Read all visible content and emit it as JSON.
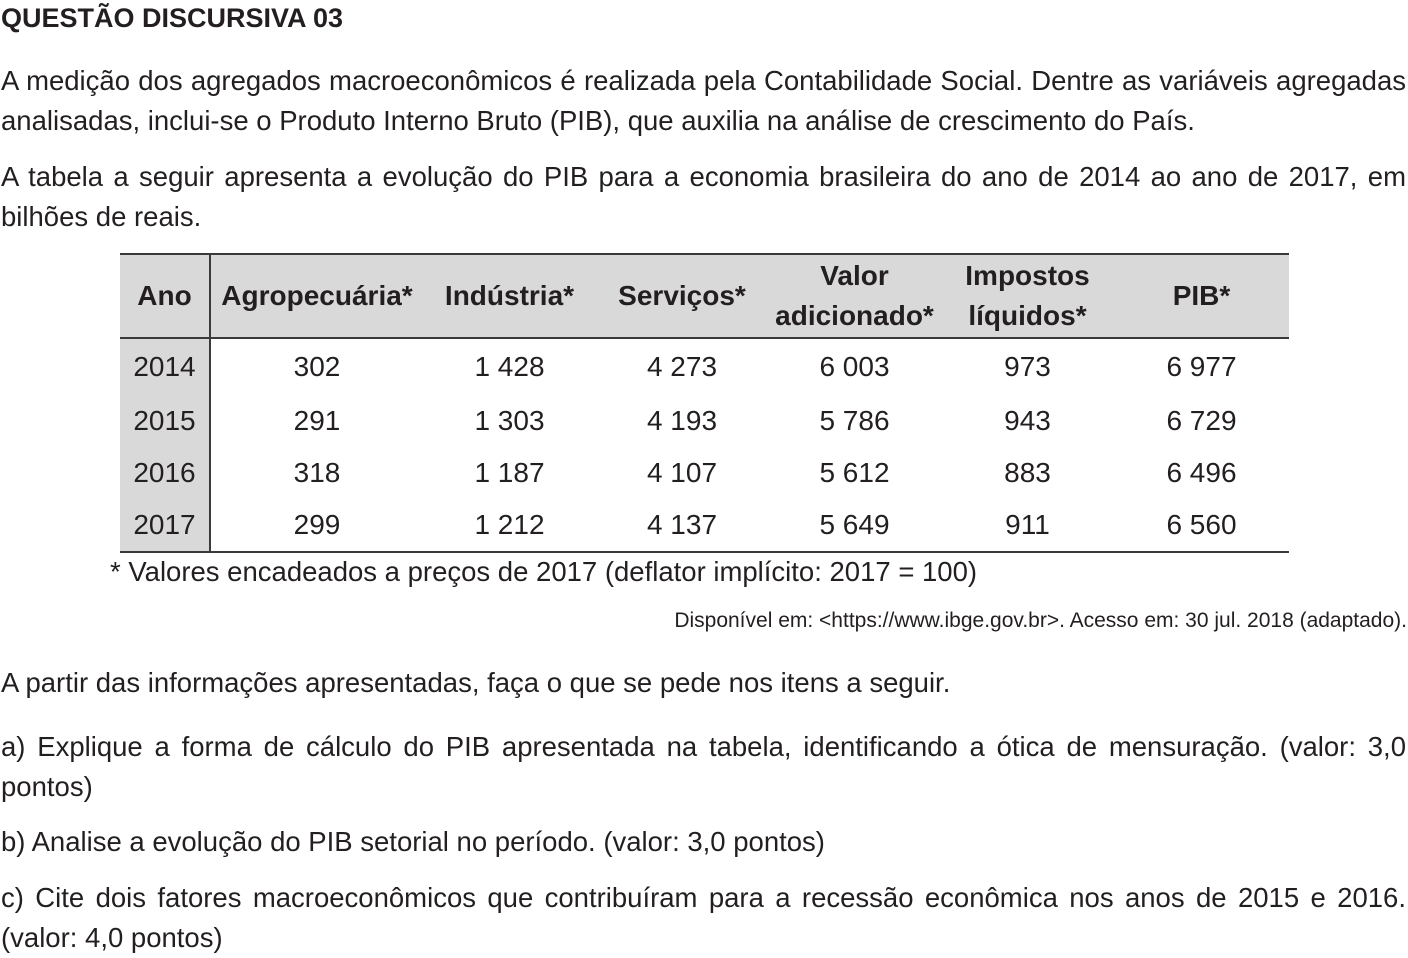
{
  "title": "QUESTÃO DISCURSIVA 03",
  "paragraph1": "A medição dos agregados macroeconômicos é realizada pela Contabilidade Social. Dentre as variáveis agregadas analisadas, inclui-se o Produto Interno Bruto (PIB), que auxilia na análise de crescimento do País.",
  "paragraph2": "A tabela a seguir apresenta a evolução do PIB para a economia brasileira do ano de 2014 ao ano de 2017, em bilhões de reais.",
  "table": {
    "headers": {
      "year": "Ano",
      "agro": "Agropecuária*",
      "industry": "Indústria*",
      "services": "Serviços*",
      "value_added_line1": "Valor",
      "value_added_line2": "adicionado*",
      "taxes_line1": "Impostos",
      "taxes_line2": "líquidos*",
      "gdp": "PIB*"
    },
    "rows": [
      {
        "year": "2014",
        "agro": "302",
        "industry": "1 428",
        "services": "4 273",
        "value_added": "6 003",
        "taxes": "973",
        "gdp": "6 977"
      },
      {
        "year": "2015",
        "agro": "291",
        "industry": "1 303",
        "services": "4 193",
        "value_added": "5 786",
        "taxes": "943",
        "gdp": "6 729"
      },
      {
        "year": "2016",
        "agro": "318",
        "industry": "1 187",
        "services": "4 107",
        "value_added": "5 612",
        "taxes": "883",
        "gdp": "6 496"
      },
      {
        "year": "2017",
        "agro": "299",
        "industry": "1 212",
        "services": "4 137",
        "value_added": "5 649",
        "taxes": "911",
        "gdp": "6 560"
      }
    ]
  },
  "footnote": "* Valores encadeados a preços de 2017 (deflator implícito: 2017 = 100)",
  "source": "Disponível em: <https://www.ibge.gov.br>. Acesso em: 30 jul. 2018 (adaptado).",
  "paragraph3": "A partir das informações apresentadas, faça o que se pede nos itens a seguir.",
  "item_a": "a) Explique a forma de cálculo do PIB apresentada na tabela, identificando a ótica de mensuração. (valor: 3,0 pontos)",
  "item_b": "b) Analise a evolução do PIB setorial no período. (valor: 3,0 pontos)",
  "item_c": "c) Cite dois fatores macroeconômicos que contribuíram para a recessão econômica nos anos de 2015 e 2016. (valor: 4,0 pontos)"
}
